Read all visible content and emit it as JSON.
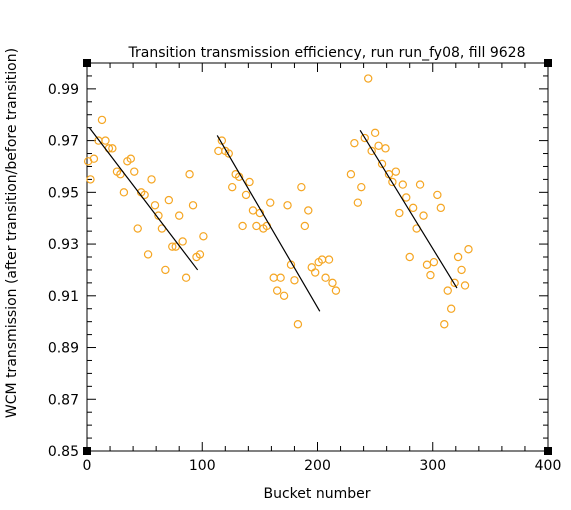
{
  "chart_data": {
    "type": "scatter",
    "title": "Transition transmission efficiency, run run_fy08, fill 9628",
    "xlabel": "Bucket number",
    "ylabel": "WCM transmission (after transition/before transition)",
    "xlim": [
      0,
      400
    ],
    "ylim": [
      0.85,
      1.0
    ],
    "x_ticks": [
      "0",
      "100",
      "200",
      "300",
      "400"
    ],
    "y_ticks": [
      "0.85",
      "0.87",
      "0.89",
      "0.91",
      "0.93",
      "0.95",
      "0.97",
      "0.99"
    ],
    "grid": false,
    "colors": {
      "points": "#f5a623",
      "fit": "#000000",
      "axes": "#000000"
    },
    "series": [
      {
        "points": [
          [
            1,
            0.962
          ],
          [
            3,
            0.955
          ],
          [
            6,
            0.963
          ],
          [
            10,
            0.97
          ],
          [
            13,
            0.978
          ],
          [
            16,
            0.97
          ],
          [
            19,
            0.967
          ],
          [
            22,
            0.967
          ],
          [
            26,
            0.958
          ],
          [
            29,
            0.957
          ],
          [
            32,
            0.95
          ],
          [
            35,
            0.962
          ],
          [
            38,
            0.963
          ],
          [
            41,
            0.958
          ],
          [
            44,
            0.936
          ],
          [
            47,
            0.95
          ],
          [
            50,
            0.949
          ],
          [
            53,
            0.926
          ],
          [
            56,
            0.955
          ],
          [
            59,
            0.945
          ],
          [
            62,
            0.941
          ],
          [
            65,
            0.936
          ],
          [
            68,
            0.92
          ],
          [
            71,
            0.947
          ],
          [
            74,
            0.929
          ],
          [
            77,
            0.929
          ],
          [
            80,
            0.941
          ],
          [
            83,
            0.931
          ],
          [
            86,
            0.917
          ],
          [
            89,
            0.957
          ],
          [
            92,
            0.945
          ],
          [
            95,
            0.925
          ],
          [
            98,
            0.926
          ],
          [
            101,
            0.933
          ]
        ],
        "fit": [
          [
            2,
            0.975
          ],
          [
            96,
            0.92
          ]
        ]
      },
      {
        "points": [
          [
            114,
            0.966
          ],
          [
            117,
            0.97
          ],
          [
            120,
            0.966
          ],
          [
            123,
            0.965
          ],
          [
            126,
            0.952
          ],
          [
            129,
            0.957
          ],
          [
            132,
            0.956
          ],
          [
            135,
            0.937
          ],
          [
            138,
            0.949
          ],
          [
            141,
            0.954
          ],
          [
            144,
            0.943
          ],
          [
            147,
            0.937
          ],
          [
            150,
            0.942
          ],
          [
            153,
            0.936
          ],
          [
            156,
            0.937
          ],
          [
            159,
            0.946
          ],
          [
            162,
            0.917
          ],
          [
            165,
            0.912
          ],
          [
            168,
            0.917
          ],
          [
            171,
            0.91
          ],
          [
            174,
            0.945
          ],
          [
            177,
            0.922
          ],
          [
            180,
            0.916
          ],
          [
            183,
            0.899
          ],
          [
            186,
            0.952
          ],
          [
            189,
            0.937
          ],
          [
            192,
            0.943
          ],
          [
            195,
            0.921
          ],
          [
            198,
            0.919
          ],
          [
            201,
            0.923
          ],
          [
            204,
            0.924
          ],
          [
            207,
            0.917
          ],
          [
            210,
            0.924
          ],
          [
            213,
            0.915
          ],
          [
            216,
            0.912
          ]
        ],
        "fit": [
          [
            113,
            0.972
          ],
          [
            202,
            0.904
          ]
        ]
      },
      {
        "points": [
          [
            229,
            0.957
          ],
          [
            232,
            0.969
          ],
          [
            235,
            0.946
          ],
          [
            238,
            0.952
          ],
          [
            241,
            0.971
          ],
          [
            244,
            0.994
          ],
          [
            247,
            0.966
          ],
          [
            250,
            0.973
          ],
          [
            253,
            0.968
          ],
          [
            256,
            0.961
          ],
          [
            259,
            0.967
          ],
          [
            262,
            0.957
          ],
          [
            265,
            0.954
          ],
          [
            268,
            0.958
          ],
          [
            271,
            0.942
          ],
          [
            274,
            0.953
          ],
          [
            277,
            0.948
          ],
          [
            280,
            0.925
          ],
          [
            283,
            0.944
          ],
          [
            286,
            0.936
          ],
          [
            289,
            0.953
          ],
          [
            292,
            0.941
          ],
          [
            295,
            0.922
          ],
          [
            298,
            0.918
          ],
          [
            301,
            0.923
          ],
          [
            304,
            0.949
          ],
          [
            307,
            0.944
          ],
          [
            310,
            0.899
          ],
          [
            313,
            0.912
          ],
          [
            316,
            0.905
          ],
          [
            319,
            0.915
          ],
          [
            322,
            0.925
          ],
          [
            325,
            0.92
          ],
          [
            328,
            0.914
          ],
          [
            331,
            0.928
          ]
        ],
        "fit": [
          [
            237,
            0.974
          ],
          [
            321,
            0.913
          ]
        ]
      }
    ]
  }
}
